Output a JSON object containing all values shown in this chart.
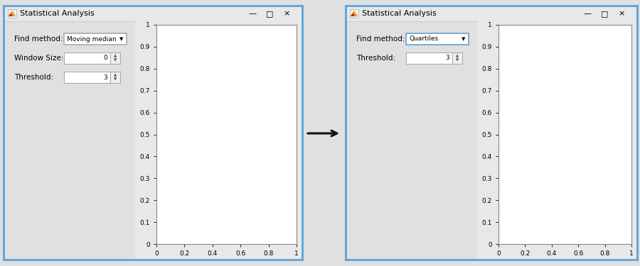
{
  "bg_color": "#e0e0e0",
  "window_bg": "#e8e8e8",
  "inner_panel_bg": "#e0e0e0",
  "plot_bg": "#ffffff",
  "border_color_blue": "#5ba3d9",
  "border_color_gray": "#aaaaaa",
  "titlebar_color": "#e8e8e8",
  "title_text": "Statistical Analysis",
  "left_panel": {
    "find_method_label": "Find method:",
    "find_method_value": "Moving median",
    "window_size_label": "Window Size:",
    "window_size_value": "0",
    "threshold_label": "Threshold:",
    "threshold_value": "3",
    "dropdown_border": "#aaaaaa",
    "has_window_size": true
  },
  "right_panel": {
    "find_method_label": "Find method:",
    "find_method_value": "Quartiles",
    "threshold_label": "Threshold:",
    "threshold_value": "3",
    "dropdown_border": "#5ba3d9",
    "has_window_size": false
  },
  "arrow_color": "#111111",
  "ytick_labels": [
    "0",
    "0.1",
    "0.2",
    "0.3",
    "0.4",
    "0.5",
    "0.6",
    "0.7",
    "0.8",
    "0.9",
    "1"
  ],
  "xtick_labels": [
    "0",
    "0.2",
    "0.4",
    "0.6",
    "0.8",
    "1"
  ],
  "xtick_vals": [
    0.0,
    0.2,
    0.4,
    0.6,
    0.8,
    1.0
  ],
  "ytick_vals": [
    0.0,
    0.1,
    0.2,
    0.3,
    0.4,
    0.5,
    0.6,
    0.7,
    0.8,
    0.9,
    1.0
  ],
  "plot_xlim": [
    0,
    1
  ],
  "plot_ylim": [
    0,
    1
  ]
}
